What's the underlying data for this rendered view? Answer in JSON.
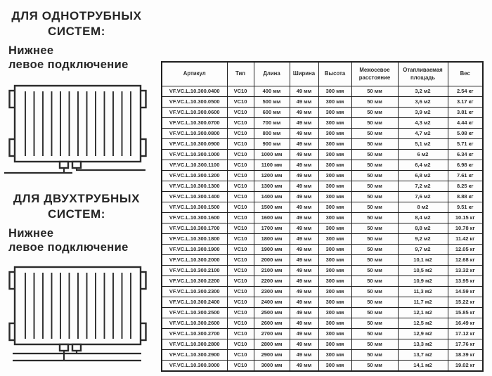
{
  "colors": {
    "background": "#fdfdfd",
    "text": "#2b2b2b",
    "table_border": "#1f1f1f",
    "diagram_stroke": "#2b2b2b"
  },
  "sections": [
    {
      "title_line1": "ДЛЯ ОДНОТРУБНЫХ",
      "title_line2": "СИСТЕМ:",
      "subtitle_line1": "Нижнее",
      "subtitle_line2": "левое подключение",
      "diagram": "single-pipe-radiator-bottom-left-connection"
    },
    {
      "title_line1": "ДЛЯ ДВУХТРУБНЫХ",
      "title_line2": "СИСТЕМ:",
      "subtitle_line1": "Нижнее",
      "subtitle_line2": "левое подключение",
      "diagram": "two-pipe-radiator-bottom-left-connection"
    }
  ],
  "table": {
    "headers": [
      "Артикул",
      "Тип",
      "Длина",
      "Ширина",
      "Высота",
      "Межосевое расстояние",
      "Отапливаемая площадь",
      "Вес"
    ],
    "rows": [
      [
        "VF.VC.L.10.300.0400",
        "VC10",
        "400 мм",
        "49 мм",
        "300 мм",
        "50 мм",
        "3,2 м2",
        "2.54 кг"
      ],
      [
        "VF.VC.L.10.300.0500",
        "VC10",
        "500 мм",
        "49 мм",
        "300 мм",
        "50 мм",
        "3,6 м2",
        "3.17 кг"
      ],
      [
        "VF.VC.L.10.300.0600",
        "VC10",
        "600 мм",
        "49 мм",
        "300 мм",
        "50 мм",
        "3,9 м2",
        "3.81 кг"
      ],
      [
        "VF.VC.L.10.300.0700",
        "VC10",
        "700 мм",
        "49 мм",
        "300 мм",
        "50 мм",
        "4,3 м2",
        "4.44 кг"
      ],
      [
        "VF.VC.L.10.300.0800",
        "VC10",
        "800 мм",
        "49 мм",
        "300 мм",
        "50 мм",
        "4,7 м2",
        "5.08 кг"
      ],
      [
        "VF.VC.L.10.300.0900",
        "VC10",
        "900 мм",
        "49 мм",
        "300 мм",
        "50 мм",
        "5,1 м2",
        "5.71 кг"
      ],
      [
        "VF.VC.L.10.300.1000",
        "VC10",
        "1000 мм",
        "49 мм",
        "300 мм",
        "50 мм",
        "6 м2",
        "6.34 кг"
      ],
      [
        "VF.VC.L.10.300.1100",
        "VC10",
        "1100 мм",
        "49 мм",
        "300 мм",
        "50 мм",
        "6,4 м2",
        "6.98 кг"
      ],
      [
        "VF.VC.L.10.300.1200",
        "VC10",
        "1200 мм",
        "49 мм",
        "300 мм",
        "50 мм",
        "6,8 м2",
        "7.61 кг"
      ],
      [
        "VF.VC.L.10.300.1300",
        "VC10",
        "1300 мм",
        "49 мм",
        "300 мм",
        "50 мм",
        "7,2 м2",
        "8.25 кг"
      ],
      [
        "VF.VC.L.10.300.1400",
        "VC10",
        "1400 мм",
        "49 мм",
        "300 мм",
        "50 мм",
        "7,6 м2",
        "8.88 кг"
      ],
      [
        "VF.VC.L.10.300.1500",
        "VC10",
        "1500 мм",
        "49 мм",
        "300 мм",
        "50 мм",
        "8 м2",
        "9.51 кг"
      ],
      [
        "VF.VC.L.10.300.1600",
        "VC10",
        "1600 мм",
        "49 мм",
        "300 мм",
        "50 мм",
        "8,4 м2",
        "10.15 кг"
      ],
      [
        "VF.VC.L.10.300.1700",
        "VC10",
        "1700 мм",
        "49 мм",
        "300 мм",
        "50 мм",
        "8,8 м2",
        "10.78 кг"
      ],
      [
        "VF.VC.L.10.300.1800",
        "VC10",
        "1800 мм",
        "49 мм",
        "300 мм",
        "50 мм",
        "9,2 м2",
        "11.42 кг"
      ],
      [
        "VF.VC.L.10.300.1900",
        "VC10",
        "1900 мм",
        "49 мм",
        "300 мм",
        "50 мм",
        "9,7 м2",
        "12.05 кг"
      ],
      [
        "VF.VC.L.10.300.2000",
        "VC10",
        "2000 мм",
        "49 мм",
        "300 мм",
        "50 мм",
        "10,1 м2",
        "12.68 кг"
      ],
      [
        "VF.VC.L.10.300.2100",
        "VC10",
        "2100 мм",
        "49 мм",
        "300 мм",
        "50 мм",
        "10,5 м2",
        "13.32 кг"
      ],
      [
        "VF.VC.L.10.300.2200",
        "VC10",
        "2200 мм",
        "49 мм",
        "300 мм",
        "50 мм",
        "10,9 м2",
        "13.95 кг"
      ],
      [
        "VF.VC.L.10.300.2300",
        "VC10",
        "2300 мм",
        "49 мм",
        "300 мм",
        "50 мм",
        "11,3 м2",
        "14.59 кг"
      ],
      [
        "VF.VC.L.10.300.2400",
        "VC10",
        "2400 мм",
        "49 мм",
        "300 мм",
        "50 мм",
        "11,7 м2",
        "15.22 кг"
      ],
      [
        "VF.VC.L.10.300.2500",
        "VC10",
        "2500 мм",
        "49 мм",
        "300 мм",
        "50 мм",
        "12,1 м2",
        "15.85 кг"
      ],
      [
        "VF.VC.L.10.300.2600",
        "VC10",
        "2600 мм",
        "49 мм",
        "300 мм",
        "50 мм",
        "12,5 м2",
        "16.49 кг"
      ],
      [
        "VF.VC.L.10.300.2700",
        "VC10",
        "2700 мм",
        "49 мм",
        "300 мм",
        "50 мм",
        "12,9 м2",
        "17.12 кг"
      ],
      [
        "VF.VC.L.10.300.2800",
        "VC10",
        "2800 мм",
        "49 мм",
        "300 мм",
        "50 мм",
        "13,3 м2",
        "17.76 кг"
      ],
      [
        "VF.VC.L.10.300.2900",
        "VC10",
        "2900 мм",
        "49 мм",
        "300 мм",
        "50 мм",
        "13,7 м2",
        "18.39 кг"
      ],
      [
        "VF.VC.L.10.300.3000",
        "VC10",
        "3000 мм",
        "49 мм",
        "300 мм",
        "50 мм",
        "14,1 м2",
        "19.02 кг"
      ]
    ]
  }
}
